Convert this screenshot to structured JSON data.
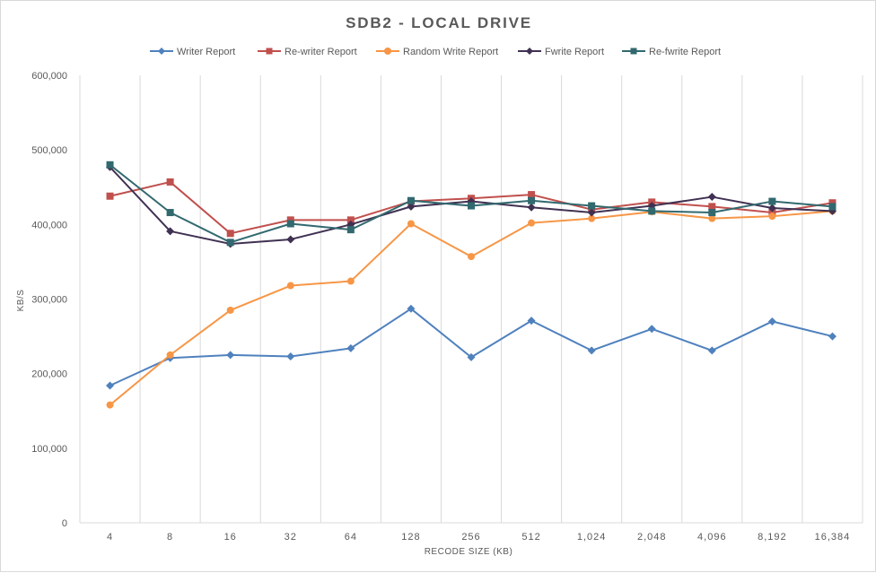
{
  "chart_data": {
    "type": "line",
    "title": "SDB2 - LOCAL DRIVE",
    "xlabel": "RECODE SIZE (KB)",
    "ylabel": "KB/S",
    "categories": [
      "4",
      "8",
      "16",
      "32",
      "64",
      "128",
      "256",
      "512",
      "1,024",
      "2,048",
      "4,096",
      "8,192",
      "16,384"
    ],
    "ylim": [
      0,
      600000
    ],
    "yticks": [
      0,
      100000,
      200000,
      300000,
      400000,
      500000,
      600000
    ],
    "ytick_labels": [
      "0",
      "100,000",
      "200,000",
      "300,000",
      "400,000",
      "500,000",
      "600,000"
    ],
    "grid": "vertical",
    "legend_position": "top",
    "series": [
      {
        "name": "Writer Report",
        "color": "#4f81bd",
        "marker": "diamond",
        "values": [
          184000,
          221000,
          225000,
          223000,
          234000,
          287000,
          222000,
          271000,
          231000,
          260000,
          231000,
          270000,
          250000
        ]
      },
      {
        "name": "Re-writer Report",
        "color": "#c0504d",
        "marker": "square",
        "values": [
          438000,
          457000,
          388000,
          406000,
          406000,
          431000,
          435000,
          440000,
          420000,
          430000,
          424000,
          416000,
          429000
        ]
      },
      {
        "name": "Random Write Report",
        "color": "#f79646",
        "marker": "circle",
        "values": [
          158000,
          225000,
          285000,
          318000,
          324000,
          401000,
          357000,
          402000,
          408000,
          417000,
          408000,
          411000,
          418000
        ]
      },
      {
        "name": "Fwrite Report",
        "color": "#403152",
        "marker": "diamond",
        "values": [
          477000,
          391000,
          374000,
          380000,
          400000,
          424000,
          431000,
          423000,
          416000,
          425000,
          437000,
          422000,
          418000
        ]
      },
      {
        "name": "Re-fwrite Report",
        "color": "#31696f",
        "marker": "square",
        "values": [
          480000,
          416000,
          376000,
          401000,
          393000,
          432000,
          425000,
          432000,
          425000,
          418000,
          416000,
          431000,
          424000
        ]
      }
    ]
  }
}
